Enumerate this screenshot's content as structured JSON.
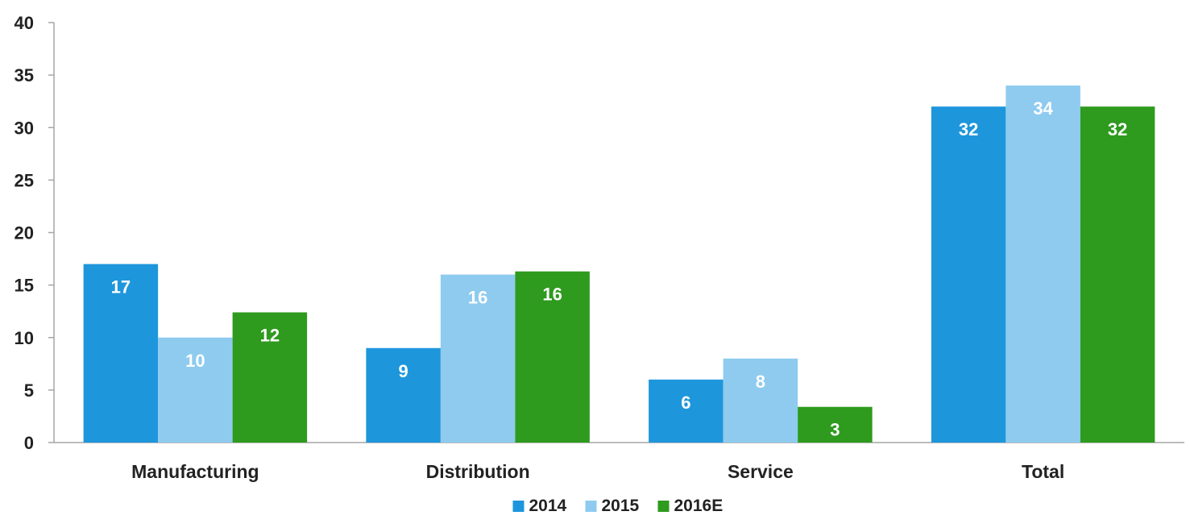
{
  "chart_data": {
    "type": "bar",
    "categories": [
      "Manufacturing",
      "Distribution",
      "Service",
      "Total"
    ],
    "series": [
      {
        "name": "2014",
        "color": "#1e96dc",
        "values": [
          17,
          9,
          6,
          32
        ]
      },
      {
        "name": "2015",
        "color": "#8ecbef",
        "values": [
          10,
          16,
          8,
          34
        ]
      },
      {
        "name": "2016E",
        "color": "#2e9a1e",
        "values": [
          12.4,
          16.3,
          3.4,
          32
        ]
      }
    ],
    "data_labels": [
      [
        "17",
        "9",
        "6",
        "32"
      ],
      [
        "10",
        "16",
        "8",
        "34"
      ],
      [
        "12",
        "16",
        "3",
        "32"
      ]
    ],
    "y_ticks": [
      "0",
      "5",
      "10",
      "15",
      "20",
      "25",
      "30",
      "35",
      "40"
    ],
    "ylim": [
      0,
      40
    ],
    "title": "",
    "xlabel": "",
    "ylabel": "",
    "grid": false,
    "legend_position": "bottom-center"
  }
}
